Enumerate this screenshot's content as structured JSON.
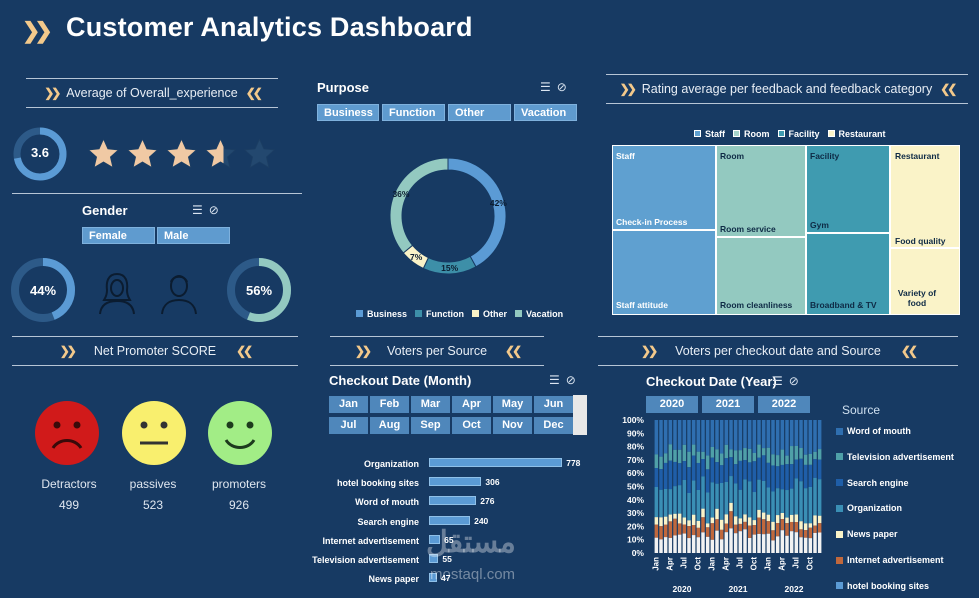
{
  "header": {
    "title": "Customer Analytics Dashboard"
  },
  "avg_experience": {
    "heading": "Average of Overall_experience",
    "value": "3.6",
    "rating": 3.6,
    "max_stars": 5
  },
  "gender": {
    "title": "Gender",
    "options": [
      "Female",
      "Male"
    ],
    "female_pct": "44%",
    "male_pct": "56%",
    "female_value": 0.44,
    "male_value": 0.56
  },
  "purpose": {
    "title": "Purpose",
    "options": [
      "Business",
      "Function",
      "Other",
      "Vacation"
    ]
  },
  "rating_heading": "Rating average per feedback and feedback category",
  "treemap": {
    "legend": [
      "Staff",
      "Room",
      "Facility",
      "Restaurant"
    ],
    "staff": [
      "Staff",
      "Check-in Process",
      "Staff attitude"
    ],
    "room": [
      "Room",
      "Room service",
      "Room cleanliness"
    ],
    "facility": [
      "Facility",
      "Gym",
      "Broadband & TV"
    ],
    "restaurant": [
      "Restaurant",
      "Food quality",
      "Variety of",
      "food"
    ]
  },
  "nps": {
    "heading": "Net Promoter SCORE",
    "detractors_label": "Detractors",
    "detractors": "499",
    "passives_label": "passives",
    "passives": "523",
    "promoters_label": "promoters",
    "promoters": "926"
  },
  "voters_source_heading": "Voters per Source",
  "checkout_month": {
    "title": "Checkout Date (Month)",
    "months": [
      "Jan",
      "Feb",
      "Mar",
      "Apr",
      "May",
      "Jun",
      "Jul",
      "Aug",
      "Sep",
      "Oct",
      "Nov",
      "Dec"
    ]
  },
  "voters_date_heading": "Voters per checkout date and Source",
  "checkout_year": {
    "title": "Checkout Date (Year)",
    "years": [
      "2020",
      "2021",
      "2022"
    ]
  },
  "source_legend": {
    "title": "Source",
    "items": [
      "Word of mouth",
      "Television advertisement",
      "Search engine",
      "Organization",
      "News paper",
      "Internet advertisement",
      "hotel booking sites"
    ]
  },
  "watermark": {
    "arabic": "مستقل",
    "latin": "mostaql.com"
  },
  "colors": {
    "background": "#173a63",
    "accent": "#f3c98b",
    "business": "#5b9bd5",
    "function": "#3d8fa8",
    "other": "#faf3c8",
    "vacation": "#93c9c0"
  },
  "chart_data": [
    {
      "type": "pie",
      "title": "Purpose",
      "categories": [
        "Business",
        "Function",
        "Other",
        "Vacation"
      ],
      "values": [
        42,
        15,
        7,
        36
      ],
      "labels": [
        "42%",
        "15%",
        "7%",
        "36%"
      ]
    },
    {
      "type": "bar",
      "title": "Voters per Source",
      "categories": [
        "Organization",
        "hotel booking sites",
        "Word of mouth",
        "Search engine",
        "Internet advertisement",
        "Television advertisement",
        "News paper"
      ],
      "values": [
        778,
        306,
        276,
        240,
        65,
        55,
        47
      ],
      "labels": [
        "778",
        "306",
        "276",
        "240",
        "65",
        "55",
        "47"
      ],
      "xlim": [
        0,
        800
      ]
    },
    {
      "type": "bar",
      "title": "Voters per checkout date and Source",
      "stacked": "100%",
      "y_ticks": [
        "0%",
        "10%",
        "20%",
        "30%",
        "40%",
        "50%",
        "60%",
        "70%",
        "80%",
        "90%",
        "100%"
      ],
      "x_month_ticks": [
        "Jan",
        "Apr",
        "Jul",
        "Oct",
        "Jan",
        "Apr",
        "Jul",
        "Oct",
        "Jan",
        "Apr",
        "Jul",
        "Oct"
      ],
      "years": [
        "2020",
        "2021",
        "2022"
      ],
      "series": [
        "Word of mouth",
        "Television advertisement",
        "Search engine",
        "Organization",
        "News paper",
        "Internet advertisement",
        "hotel booking sites"
      ],
      "ylim": [
        0,
        100
      ]
    }
  ]
}
